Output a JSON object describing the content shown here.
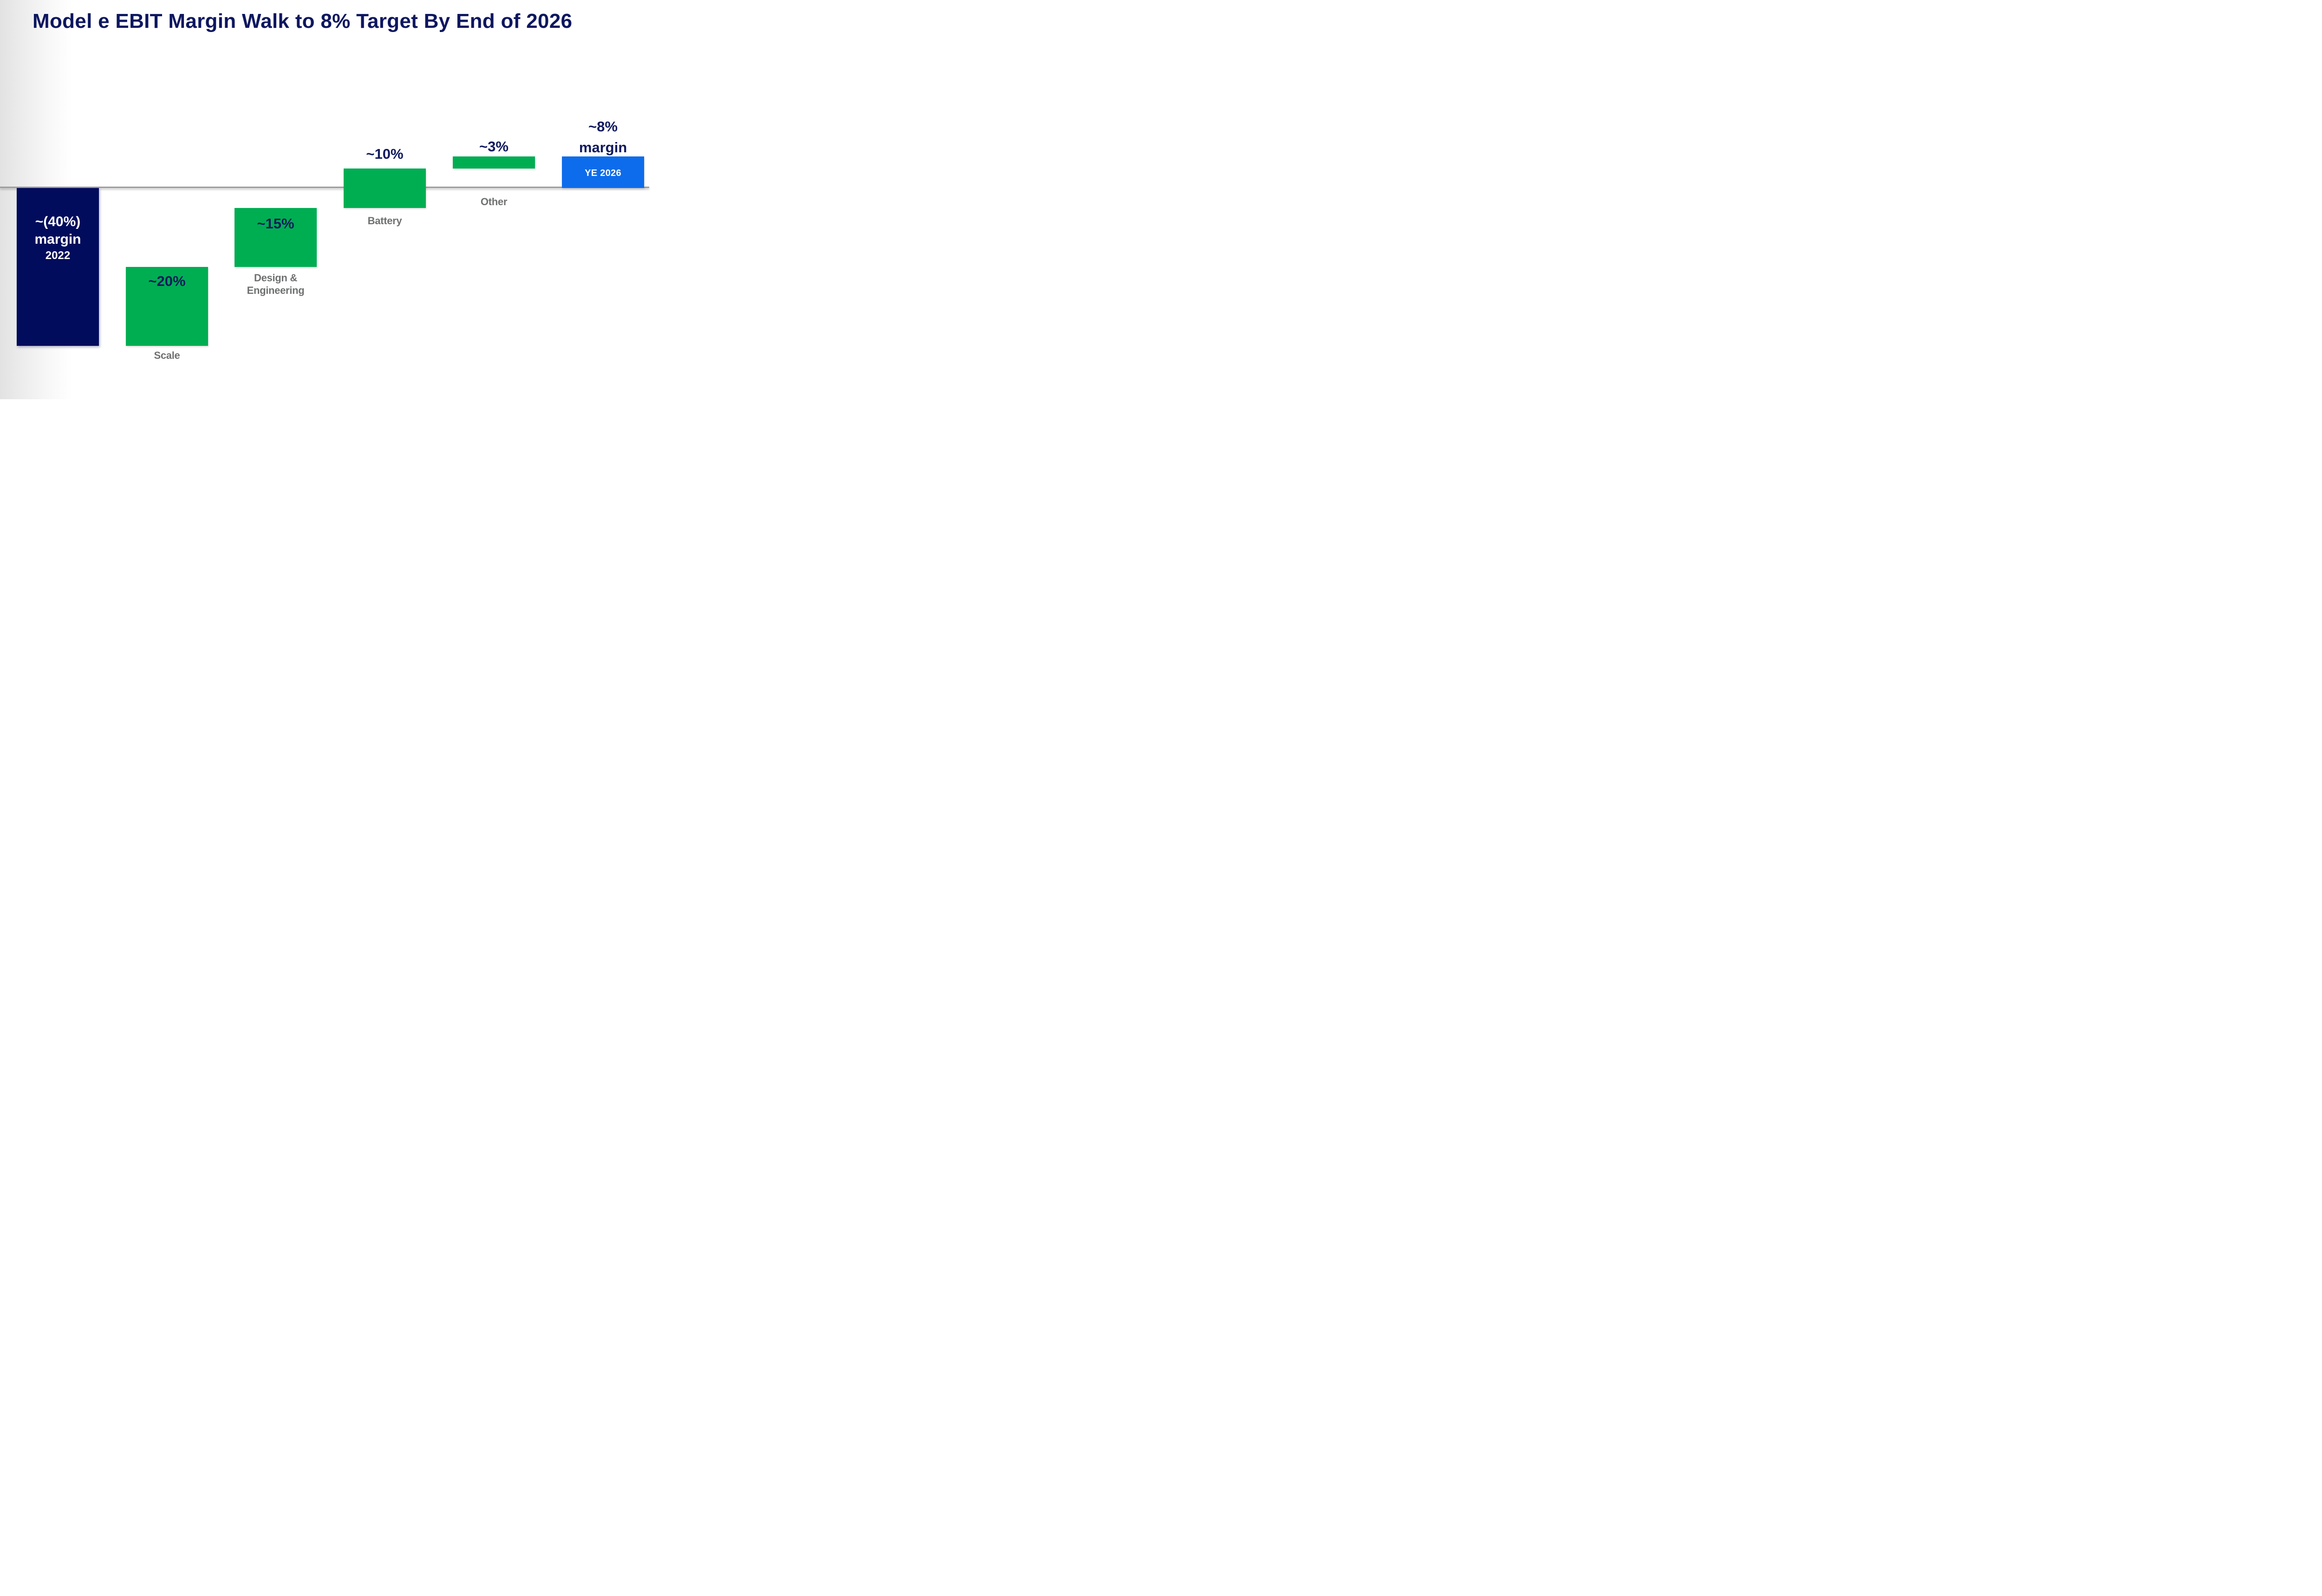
{
  "slide": {
    "title": "Model e EBIT Margin Walk to 8% Target By End of 2026"
  },
  "colors": {
    "title_navy": "#0d1760",
    "bar_navy": "#020c5c",
    "bar_green": "#00ae52",
    "bar_blue": "#0d6ceb",
    "value_label_navy": "#101a5e",
    "category_label_gray": "#6f7071",
    "axis_line_gray": "#9d9da0",
    "background_left_gray": "#e2e2e2",
    "white_text": "#ffffff"
  },
  "chart_data": {
    "type": "bar",
    "subtype": "waterfall",
    "title": "Model e EBIT Margin Walk to 8% Target By End of 2026",
    "unit": "EBIT margin, percent",
    "xlabel": "",
    "ylabel": "",
    "grid": false,
    "legend": false,
    "baseline_value": 0,
    "ylim": [
      -40,
      8
    ],
    "categories": [
      "2022",
      "Scale",
      "Design & Engineering",
      "Battery",
      "Other",
      "YE 2026"
    ],
    "values": [
      -40,
      20,
      15,
      10,
      3,
      8
    ],
    "bar_roles": [
      "start",
      "increase",
      "increase",
      "increase",
      "increase",
      "end"
    ],
    "cumulative": [
      -40,
      -20,
      -5,
      5,
      8,
      8
    ],
    "bars": [
      {
        "name": "2022 starting margin",
        "value": -40,
        "span": [
          -40,
          0
        ],
        "color": "#020c5c",
        "display": {
          "line1": "~(40%)",
          "line2": "margin",
          "line3": "2022"
        }
      },
      {
        "name": "Scale",
        "value": 20,
        "span": [
          -40,
          -20
        ],
        "color": "#00ae52",
        "value_label": "~20%",
        "category_label": "Scale"
      },
      {
        "name": "Design & Engineering",
        "value": 15,
        "span": [
          -20,
          -5
        ],
        "color": "#00ae52",
        "value_label": "~15%",
        "category_label_line1": "Design &",
        "category_label_line2": "Engineering"
      },
      {
        "name": "Battery",
        "value": 10,
        "span": [
          -5,
          5
        ],
        "color": "#00ae52",
        "value_label": "~10%",
        "category_label": "Battery"
      },
      {
        "name": "Other",
        "value": 3,
        "span": [
          5,
          8
        ],
        "color": "#00ae52",
        "value_label": "~3%",
        "category_label": "Other"
      },
      {
        "name": "YE 2026 target margin",
        "value": 8,
        "span": [
          0,
          8
        ],
        "color": "#0d6ceb",
        "value_label_line1": "~8%",
        "value_label_line2": "margin",
        "inner_label": "YE 2026"
      }
    ]
  }
}
